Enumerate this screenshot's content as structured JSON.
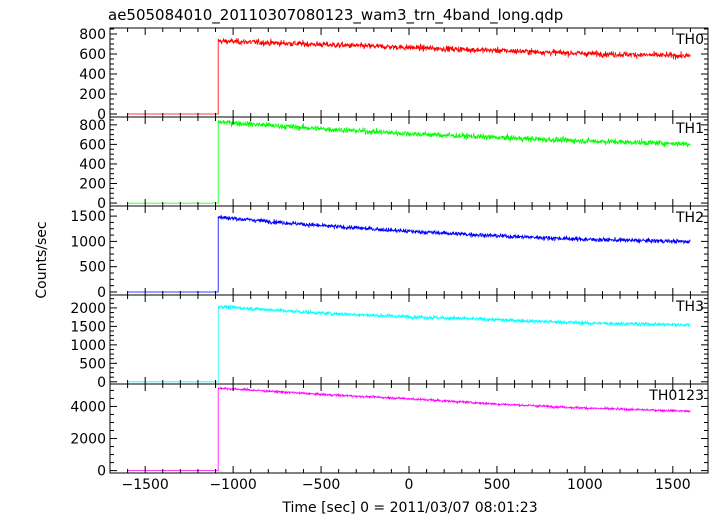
{
  "chart_data": {
    "type": "line",
    "title": "ae505084010_20110307080123_wam3_trn_4band_long.qdp",
    "xlabel": "Time [sec] 0 = 2011/03/07 08:01:23",
    "ylabel": "Counts/sec",
    "xlim": [
      -1700,
      1700
    ],
    "x_ticks": [
      -1500,
      -1000,
      -500,
      0,
      500,
      1000,
      1500
    ],
    "x_tick_labels": [
      "−1500",
      "−1000",
      "−500",
      "0",
      "500",
      "1000",
      "1500"
    ],
    "data_x_range": [
      -1600,
      1600
    ],
    "onset_time": -1085,
    "panels": [
      {
        "name": "TH0",
        "color": "#ff0000",
        "ylim": [
          -30,
          860
        ],
        "y_ticks": [
          0,
          200,
          400,
          600,
          800
        ],
        "y_tick_labels": [
          "0",
          "200",
          "400",
          "600",
          "800"
        ],
        "pre_level": 0,
        "points": [
          [
            -1085,
            730
          ],
          [
            -500,
            695
          ],
          [
            0,
            665
          ],
          [
            500,
            635
          ],
          [
            1000,
            605
          ],
          [
            1600,
            580
          ]
        ],
        "noise": 38
      },
      {
        "name": "TH1",
        "color": "#00ff00",
        "ylim": [
          -30,
          880
        ],
        "y_ticks": [
          0,
          200,
          400,
          600,
          800
        ],
        "y_tick_labels": [
          "0",
          "200",
          "400",
          "600",
          "800"
        ],
        "pre_level": 0,
        "points": [
          [
            -1085,
            830
          ],
          [
            -500,
            760
          ],
          [
            0,
            710
          ],
          [
            500,
            670
          ],
          [
            1000,
            635
          ],
          [
            1600,
            605
          ]
        ],
        "noise": 38
      },
      {
        "name": "TH2",
        "color": "#0000ff",
        "ylim": [
          -60,
          1700
        ],
        "y_ticks": [
          0,
          500,
          1000,
          1500
        ],
        "y_tick_labels": [
          "0",
          "500",
          "1000",
          "1500"
        ],
        "pre_level": 0,
        "points": [
          [
            -1085,
            1480
          ],
          [
            -500,
            1310
          ],
          [
            0,
            1200
          ],
          [
            500,
            1110
          ],
          [
            1000,
            1040
          ],
          [
            1600,
            995
          ]
        ],
        "noise": 55
      },
      {
        "name": "TH3",
        "color": "#00ffff",
        "ylim": [
          -60,
          2350
        ],
        "y_ticks": [
          0,
          500,
          1000,
          1500,
          2000
        ],
        "y_tick_labels": [
          "0",
          "500",
          "1000",
          "1500",
          "2000"
        ],
        "pre_level": 0,
        "points": [
          [
            -1085,
            2040
          ],
          [
            -500,
            1860
          ],
          [
            0,
            1760
          ],
          [
            500,
            1680
          ],
          [
            1000,
            1590
          ],
          [
            1600,
            1540
          ]
        ],
        "noise": 65
      },
      {
        "name": "TH0123",
        "color": "#ff00ff",
        "ylim": [
          -150,
          5400
        ],
        "y_ticks": [
          0,
          2000,
          4000
        ],
        "y_tick_labels": [
          "0",
          "2000",
          "4000"
        ],
        "pre_level": 0,
        "points": [
          [
            -1085,
            5150
          ],
          [
            -500,
            4750
          ],
          [
            0,
            4480
          ],
          [
            500,
            4150
          ],
          [
            1000,
            3900
          ],
          [
            1600,
            3700
          ]
        ],
        "noise": 90
      }
    ]
  }
}
